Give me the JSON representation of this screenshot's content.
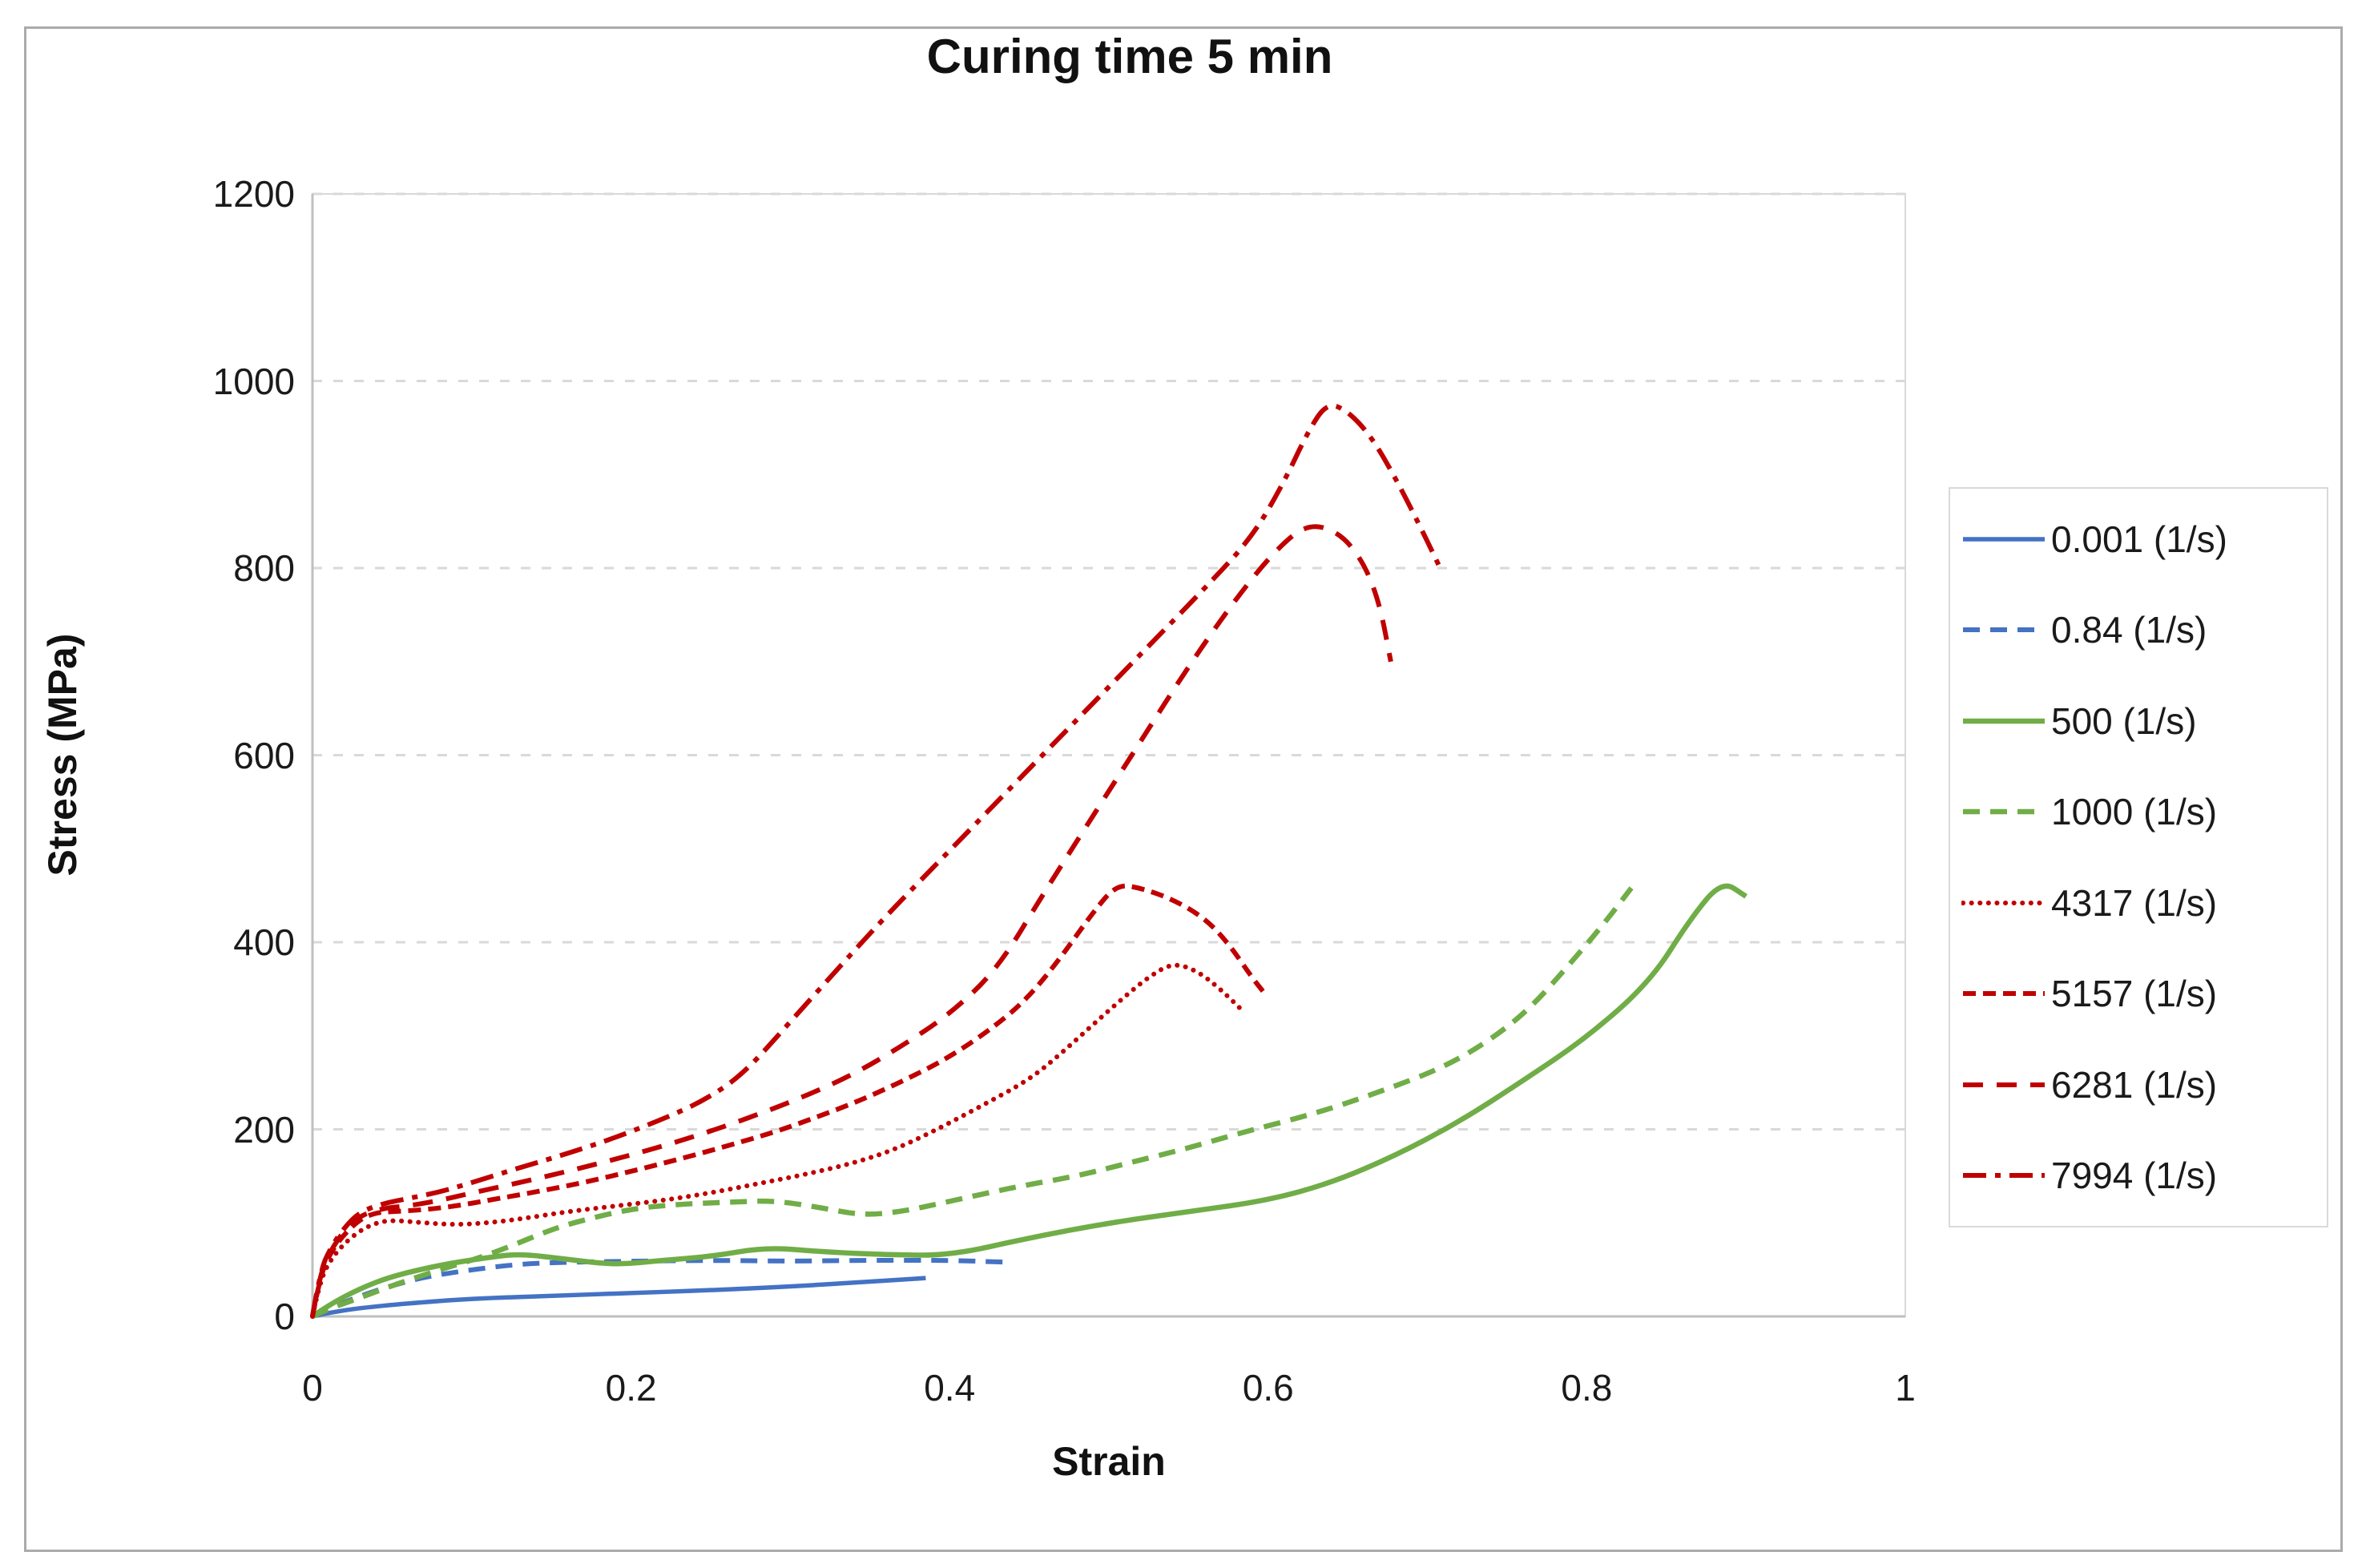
{
  "chart_data": {
    "type": "line",
    "title": "Curing time 5 min",
    "xlabel": "Strain",
    "ylabel": "Stress (MPa)",
    "xlim": [
      0,
      1
    ],
    "ylim": [
      0,
      1200
    ],
    "x_ticks": [
      "0",
      "0.2",
      "0.4",
      "0.6",
      "0.8",
      "1"
    ],
    "x_tick_values": [
      0,
      0.2,
      0.4,
      0.6,
      0.8,
      1
    ],
    "y_ticks": [
      "0",
      "200",
      "400",
      "600",
      "800",
      "1000",
      "1200"
    ],
    "y_tick_values": [
      0,
      200,
      400,
      600,
      800,
      1000,
      1200
    ],
    "grid": "horizontal dashed gridlines at 200 MPa intervals",
    "gridline_color": "#D9D9D9",
    "axis_line_color": "#BFBFBF",
    "legend_position": "right",
    "series": [
      {
        "name": "0.001 (1/s)",
        "color": "#4472C4",
        "style": "solid",
        "width": 5.5,
        "dash": "",
        "points": [
          [
            0,
            0
          ],
          [
            0.01,
            4
          ],
          [
            0.03,
            9
          ],
          [
            0.06,
            14
          ],
          [
            0.1,
            19
          ],
          [
            0.15,
            22
          ],
          [
            0.2,
            25
          ],
          [
            0.25,
            28
          ],
          [
            0.3,
            32
          ],
          [
            0.34,
            36
          ],
          [
            0.385,
            41
          ]
        ]
      },
      {
        "name": "0.84 (1/s)",
        "color": "#4472C4",
        "style": "dashed",
        "width": 6,
        "dash": "21 13",
        "points": [
          [
            0,
            0
          ],
          [
            0.01,
            8
          ],
          [
            0.03,
            22
          ],
          [
            0.05,
            33
          ],
          [
            0.07,
            42
          ],
          [
            0.1,
            50
          ],
          [
            0.13,
            56
          ],
          [
            0.16,
            58
          ],
          [
            0.2,
            59
          ],
          [
            0.25,
            60
          ],
          [
            0.3,
            59
          ],
          [
            0.35,
            60
          ],
          [
            0.4,
            60
          ],
          [
            0.435,
            58
          ]
        ]
      },
      {
        "name": "500 (1/s)",
        "color": "#70AD47",
        "style": "solid",
        "width": 6.5,
        "dash": "",
        "points": [
          [
            0,
            0
          ],
          [
            0.01,
            12
          ],
          [
            0.03,
            30
          ],
          [
            0.05,
            43
          ],
          [
            0.08,
            55
          ],
          [
            0.11,
            63
          ],
          [
            0.13,
            67
          ],
          [
            0.16,
            61
          ],
          [
            0.19,
            55
          ],
          [
            0.22,
            60
          ],
          [
            0.25,
            64
          ],
          [
            0.285,
            74
          ],
          [
            0.32,
            69
          ],
          [
            0.36,
            66
          ],
          [
            0.4,
            65
          ],
          [
            0.45,
            84
          ],
          [
            0.5,
            100
          ],
          [
            0.55,
            112
          ],
          [
            0.6,
            124
          ],
          [
            0.64,
            143
          ],
          [
            0.68,
            172
          ],
          [
            0.72,
            208
          ],
          [
            0.76,
            252
          ],
          [
            0.8,
            298
          ],
          [
            0.84,
            358
          ],
          [
            0.865,
            425
          ],
          [
            0.885,
            466
          ],
          [
            0.9,
            449
          ]
        ]
      },
      {
        "name": "1000 (1/s)",
        "color": "#70AD47",
        "style": "dashed",
        "width": 6.5,
        "dash": "21 13",
        "points": [
          [
            0,
            0
          ],
          [
            0.01,
            8
          ],
          [
            0.03,
            20
          ],
          [
            0.05,
            33
          ],
          [
            0.08,
            50
          ],
          [
            0.1,
            60
          ],
          [
            0.12,
            72
          ],
          [
            0.15,
            93
          ],
          [
            0.17,
            103
          ],
          [
            0.2,
            115
          ],
          [
            0.23,
            120
          ],
          [
            0.26,
            122
          ],
          [
            0.29,
            124
          ],
          [
            0.32,
            116
          ],
          [
            0.345,
            108
          ],
          [
            0.37,
            112
          ],
          [
            0.4,
            123
          ],
          [
            0.44,
            138
          ],
          [
            0.48,
            150
          ],
          [
            0.51,
            163
          ],
          [
            0.55,
            180
          ],
          [
            0.58,
            195
          ],
          [
            0.63,
            217
          ],
          [
            0.67,
            240
          ],
          [
            0.71,
            266
          ],
          [
            0.74,
            296
          ],
          [
            0.765,
            330
          ],
          [
            0.79,
            378
          ],
          [
            0.81,
            418
          ],
          [
            0.828,
            458
          ]
        ]
      },
      {
        "name": "4317 (1/s)",
        "color": "#C00000",
        "style": "dotted",
        "width": 6,
        "dash": "0.1 10.5",
        "linecap": "round",
        "points": [
          [
            0,
            0
          ],
          [
            0.005,
            40
          ],
          [
            0.012,
            62
          ],
          [
            0.02,
            78
          ],
          [
            0.03,
            92
          ],
          [
            0.04,
            100
          ],
          [
            0.05,
            103
          ],
          [
            0.07,
            100
          ],
          [
            0.09,
            98
          ],
          [
            0.11,
            100
          ],
          [
            0.13,
            104
          ],
          [
            0.16,
            112
          ],
          [
            0.19,
            118
          ],
          [
            0.22,
            124
          ],
          [
            0.25,
            132
          ],
          [
            0.28,
            142
          ],
          [
            0.31,
            152
          ],
          [
            0.34,
            164
          ],
          [
            0.365,
            178
          ],
          [
            0.39,
            198
          ],
          [
            0.42,
            225
          ],
          [
            0.45,
            253
          ],
          [
            0.47,
            281
          ],
          [
            0.49,
            312
          ],
          [
            0.51,
            342
          ],
          [
            0.525,
            363
          ],
          [
            0.54,
            378
          ],
          [
            0.555,
            370
          ],
          [
            0.57,
            350
          ],
          [
            0.585,
            325
          ]
        ]
      },
      {
        "name": "5157 (1/s)",
        "color": "#C00000",
        "style": "dense-dashed",
        "width": 6,
        "dash": "16 9",
        "points": [
          [
            0,
            0
          ],
          [
            0.005,
            45
          ],
          [
            0.012,
            70
          ],
          [
            0.02,
            88
          ],
          [
            0.03,
            104
          ],
          [
            0.04,
            111
          ],
          [
            0.05,
            112
          ],
          [
            0.07,
            114
          ],
          [
            0.09,
            118
          ],
          [
            0.11,
            124
          ],
          [
            0.14,
            133
          ],
          [
            0.17,
            143
          ],
          [
            0.2,
            155
          ],
          [
            0.23,
            168
          ],
          [
            0.26,
            182
          ],
          [
            0.29,
            197
          ],
          [
            0.31,
            209
          ],
          [
            0.34,
            228
          ],
          [
            0.37,
            251
          ],
          [
            0.4,
            277
          ],
          [
            0.43,
            312
          ],
          [
            0.45,
            342
          ],
          [
            0.47,
            384
          ],
          [
            0.49,
            432
          ],
          [
            0.505,
            462
          ],
          [
            0.52,
            458
          ],
          [
            0.54,
            446
          ],
          [
            0.56,
            426
          ],
          [
            0.575,
            399
          ],
          [
            0.59,
            362
          ],
          [
            0.597,
            347
          ]
        ]
      },
      {
        "name": "6281 (1/s)",
        "color": "#C00000",
        "style": "dashed",
        "width": 6,
        "dash": "25 17",
        "points": [
          [
            0,
            0
          ],
          [
            0.005,
            48
          ],
          [
            0.012,
            72
          ],
          [
            0.02,
            92
          ],
          [
            0.03,
            108
          ],
          [
            0.045,
            116
          ],
          [
            0.06,
            118
          ],
          [
            0.08,
            124
          ],
          [
            0.1,
            132
          ],
          [
            0.13,
            143
          ],
          [
            0.16,
            155
          ],
          [
            0.19,
            168
          ],
          [
            0.22,
            182
          ],
          [
            0.25,
            198
          ],
          [
            0.28,
            216
          ],
          [
            0.31,
            236
          ],
          [
            0.34,
            259
          ],
          [
            0.37,
            289
          ],
          [
            0.4,
            323
          ],
          [
            0.43,
            371
          ],
          [
            0.46,
            455
          ],
          [
            0.49,
            535
          ],
          [
            0.52,
            615
          ],
          [
            0.55,
            695
          ],
          [
            0.58,
            768
          ],
          [
            0.605,
            820
          ],
          [
            0.625,
            848
          ],
          [
            0.645,
            838
          ],
          [
            0.66,
            806
          ],
          [
            0.67,
            762
          ],
          [
            0.677,
            700
          ]
        ]
      },
      {
        "name": "7994 (1/s)",
        "color": "#C00000",
        "style": "dash-dot",
        "width": 6,
        "dash": "29 11 7 11",
        "points": [
          [
            0,
            0
          ],
          [
            0.005,
            50
          ],
          [
            0.012,
            75
          ],
          [
            0.02,
            95
          ],
          [
            0.03,
            112
          ],
          [
            0.045,
            121
          ],
          [
            0.06,
            126
          ],
          [
            0.08,
            133
          ],
          [
            0.1,
            143
          ],
          [
            0.13,
            159
          ],
          [
            0.16,
            174
          ],
          [
            0.19,
            191
          ],
          [
            0.22,
            211
          ],
          [
            0.245,
            230
          ],
          [
            0.27,
            258
          ],
          [
            0.3,
            315
          ],
          [
            0.33,
            372
          ],
          [
            0.36,
            428
          ],
          [
            0.4,
            498
          ],
          [
            0.44,
            568
          ],
          [
            0.48,
            638
          ],
          [
            0.52,
            708
          ],
          [
            0.56,
            778
          ],
          [
            0.59,
            833
          ],
          [
            0.61,
            892
          ],
          [
            0.625,
            946
          ],
          [
            0.637,
            977
          ],
          [
            0.65,
            968
          ],
          [
            0.665,
            940
          ],
          [
            0.68,
            896
          ],
          [
            0.695,
            846
          ],
          [
            0.708,
            800
          ]
        ]
      }
    ]
  },
  "layout_note": "Excel-style line chart, legend in bordered box at right, gray outer frame"
}
